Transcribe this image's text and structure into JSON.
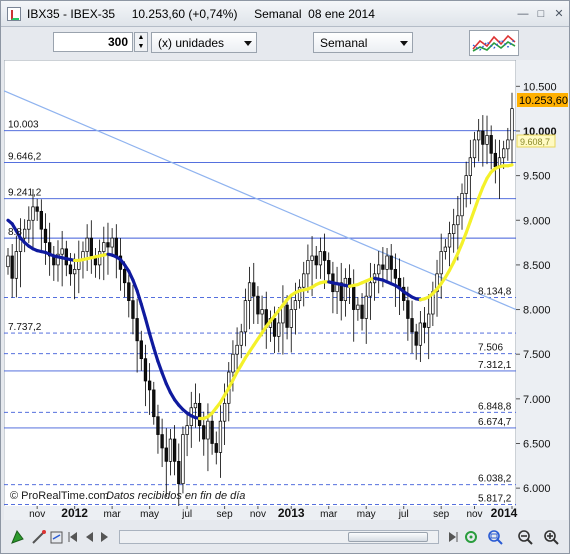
{
  "window": {
    "title": "IBX35 - IBEX-35     10.253,60 (+0,74%)     Semanal  08 ene 2014",
    "minimize_label": "—",
    "restore_label": "□",
    "close_label": "✕"
  },
  "toolbar": {
    "units_value": "300",
    "units_label": "(x) unidades",
    "period_label": "Semanal",
    "indicator_icon": "indicators-icon"
  },
  "chart": {
    "watermark": "© ProRealTime.com",
    "watermark_note": "Datos recibidos en fin de día",
    "current_price_label": "10.253,60",
    "ma_label": "9.608,7",
    "colors": {
      "up": "#ffffff",
      "down": "#111111",
      "ma_down": "#0f1a9e",
      "ma_up": "#f4f12a",
      "hline": "#3d5bd9",
      "trend": "#8fb3ef",
      "price_badge": "#ffe27a"
    }
  },
  "chart_data": {
    "type": "candlestick",
    "y_tick_labels": [
      "10.500",
      "10.000",
      "9.500",
      "9.000",
      "8.500",
      "8.000",
      "7.500",
      "7.000",
      "6.500",
      "6.000"
    ],
    "x_tick_labels": [
      "nov",
      "2012",
      "mar",
      "may",
      "jul",
      "sep",
      "nov",
      "2013",
      "mar",
      "may",
      "jul",
      "sep",
      "nov",
      "2014"
    ],
    "horizontal_levels": [
      {
        "label": "10.003",
        "side": "left",
        "style": "solid"
      },
      {
        "label": "9.646,2",
        "side": "left",
        "style": "solid"
      },
      {
        "label": "9.241,2",
        "side": "left",
        "style": "solid"
      },
      {
        "label": "8.8",
        "side": "left",
        "style": "solid"
      },
      {
        "label": "8.134,8",
        "side": "right",
        "style": "dashed"
      },
      {
        "label": "7.737,2",
        "side": "left",
        "style": "dashed"
      },
      {
        "label": "7.506",
        "side": "right",
        "style": "dashed"
      },
      {
        "label": "7.312,1",
        "side": "right",
        "style": "solid"
      },
      {
        "label": "6.848,8",
        "side": "right",
        "style": "dashed"
      },
      {
        "label": "6.674,7",
        "side": "right",
        "style": "solid"
      },
      {
        "label": "6.038,2",
        "side": "right",
        "style": "dashed"
      },
      {
        "label": "5.817,2",
        "side": "right",
        "style": "dashed"
      }
    ],
    "trendline": {
      "from": [
        0,
        10450
      ],
      "to": [
        121,
        8000
      ]
    },
    "closes": [
      8600,
      8350,
      8650,
      8800,
      8900,
      9000,
      9150,
      9100,
      8900,
      8750,
      8600,
      8500,
      8620,
      8680,
      8500,
      8400,
      8450,
      8550,
      8650,
      8800,
      8600,
      8500,
      8650,
      8750,
      8700,
      8800,
      8600,
      8450,
      8300,
      8100,
      7900,
      7650,
      7450,
      7200,
      7100,
      6800,
      6600,
      6450,
      6300,
      6550,
      6300,
      6050,
      6600,
      6700,
      6900,
      6950,
      6700,
      6550,
      6750,
      6500,
      6400,
      6750,
      6950,
      7300,
      7500,
      7600,
      7750,
      8100,
      8300,
      8150,
      7950,
      8000,
      7800,
      7900,
      7700,
      7850,
      8050,
      7800,
      8000,
      8100,
      8250,
      8400,
      8550,
      8600,
      8500,
      8650,
      8550,
      8400,
      8200,
      8300,
      8100,
      8350,
      8250,
      8000,
      8050,
      7900,
      8150,
      8300,
      8400,
      8500,
      8450,
      8600,
      8450,
      8350,
      8250,
      8100,
      7900,
      7750,
      7600,
      7850,
      7800,
      7950,
      8200,
      8400,
      8650,
      8700,
      8850,
      8950,
      9050,
      9300,
      9500,
      9700,
      9900,
      10000,
      9850,
      9950,
      9750,
      9600,
      9700,
      9800,
      9900,
      10250
    ],
    "ma": [
      9000,
      8960,
      8880,
      8800,
      8750,
      8710,
      8680,
      8660,
      8650,
      8640,
      8620,
      8600,
      8590,
      8580,
      8570,
      8560,
      8550,
      8550,
      8560,
      8570,
      8580,
      8590,
      8600,
      8610,
      8620,
      8610,
      8590,
      8560,
      8500,
      8430,
      8330,
      8210,
      8060,
      7900,
      7730,
      7570,
      7420,
      7290,
      7170,
      7070,
      6990,
      6930,
      6880,
      6840,
      6810,
      6790,
      6780,
      6780,
      6800,
      6840,
      6900,
      6960,
      7040,
      7120,
      7210,
      7300,
      7380,
      7460,
      7530,
      7600,
      7670,
      7740,
      7810,
      7870,
      7930,
      7990,
      8050,
      8110,
      8160,
      8190,
      8210,
      8220,
      8230,
      8250,
      8280,
      8300,
      8310,
      8310,
      8300,
      8290,
      8280,
      8270,
      8260,
      8270,
      8280,
      8300,
      8320,
      8340,
      8350,
      8340,
      8330,
      8310,
      8290,
      8270,
      8240,
      8200,
      8170,
      8140,
      8120,
      8110,
      8120,
      8140,
      8180,
      8230,
      8290,
      8360,
      8440,
      8530,
      8630,
      8740,
      8860,
      8990,
      9120,
      9250,
      9370,
      9470,
      9540,
      9580,
      9600,
      9610,
      9610,
      9620
    ],
    "y_range": [
      5800,
      10750
    ]
  }
}
